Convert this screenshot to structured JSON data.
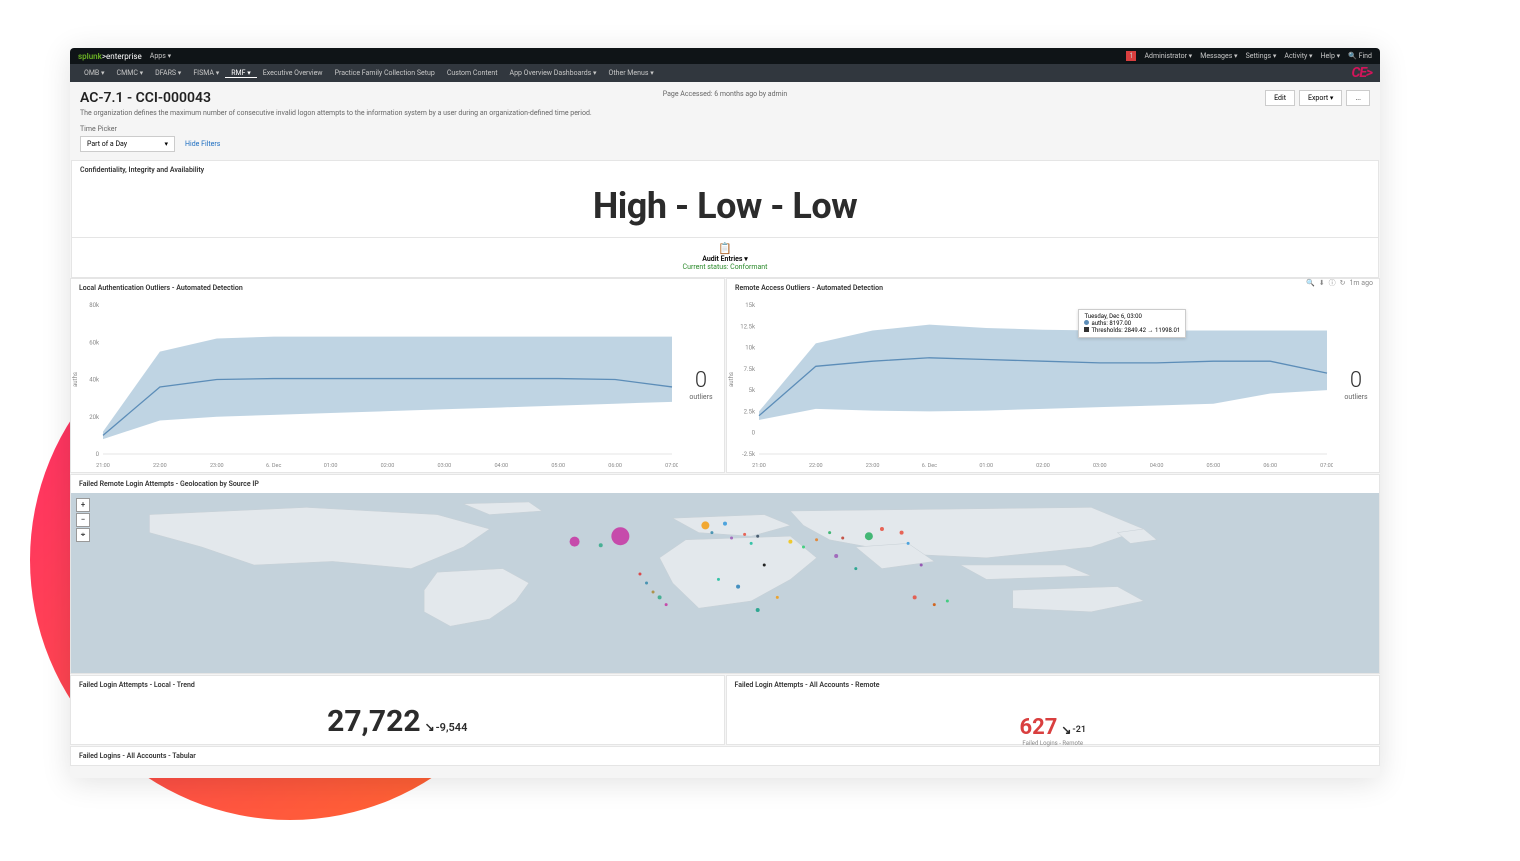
{
  "topbar": {
    "brand_prefix": "splunk",
    "brand_suffix": ">enterprise",
    "apps_label": "Apps ▾",
    "alert_count": "1",
    "right_links": [
      "Administrator ▾",
      "Messages ▾",
      "Settings ▾",
      "Activity ▾",
      "Help ▾"
    ],
    "find_label": "Find"
  },
  "nav": {
    "items": [
      "OMB ▾",
      "CMMC ▾",
      "DFARS ▾",
      "FISMA ▾",
      "RMF ▾",
      "Executive Overview",
      "Practice Family Collection Setup",
      "Custom Content",
      "App Overview Dashboards ▾",
      "Other Menus ▾"
    ],
    "active_index": 4,
    "logo": "CE>"
  },
  "header": {
    "title": "AC-7.1 - CCI-000043",
    "subtitle": "The organization defines the maximum number of consecutive invalid logon attempts to the information system by a user during an organization-defined time period.",
    "page_accessed": "Page Accessed: 6 months ago by admin",
    "actions": {
      "edit": "Edit",
      "export": "Export ▾",
      "more": "..."
    }
  },
  "filters": {
    "section_label": "Time Picker",
    "selected": "Part of a Day",
    "hide_label": "Hide Filters"
  },
  "cia": {
    "title": "Confidentiality, Integrity and Availability",
    "value": "High - Low - Low"
  },
  "audit": {
    "label": "Audit Entries ▾",
    "status": "Current status: Conformant"
  },
  "chart_left": {
    "title": "Local Authentication Outliers - Automated Detection",
    "ylabel": "auths",
    "outliers_value": "0",
    "outliers_label": "outliers",
    "ylim": [
      0,
      80000
    ],
    "ytick_labels": [
      "0",
      "20k",
      "40k",
      "60k",
      "80k"
    ],
    "xtick_labels": [
      "21:00",
      "22:00",
      "23:00",
      "6. Dec",
      "01:00",
      "02:00",
      "03:00",
      "04:00",
      "05:00",
      "06:00",
      "07:00"
    ],
    "line_color": "#5c8db8",
    "area_color": "#a9c5d9",
    "series": {
      "upper": [
        12000,
        55000,
        62000,
        63000,
        63000,
        63000,
        63000,
        63000,
        63000,
        63000,
        63000
      ],
      "line": [
        10000,
        36000,
        40000,
        40500,
        40500,
        40500,
        40500,
        40500,
        40500,
        40000,
        36000
      ],
      "lower": [
        8000,
        18000,
        20000,
        21000,
        22000,
        23000,
        24000,
        25000,
        26000,
        27000,
        28000
      ]
    }
  },
  "chart_right": {
    "title": "Remote Access Outliers - Automated Detection",
    "ylabel": "auths",
    "outliers_value": "0",
    "outliers_label": "outliers",
    "ylim": [
      -2500,
      15000
    ],
    "ytick_labels": [
      "-2.5k",
      "0",
      "2.5k",
      "5k",
      "7.5k",
      "10k",
      "12.5k",
      "15k"
    ],
    "xtick_labels": [
      "21:00",
      "22:00",
      "23:00",
      "6. Dec",
      "01:00",
      "02:00",
      "03:00",
      "04:00",
      "05:00",
      "06:00",
      "07:00"
    ],
    "line_color": "#5c8db8",
    "area_color": "#a9c5d9",
    "series": {
      "upper": [
        2500,
        10500,
        12000,
        12700,
        12300,
        12100,
        12000,
        12000,
        12000,
        12000,
        12000
      ],
      "line": [
        2000,
        7800,
        8400,
        8800,
        8600,
        8400,
        8200,
        8200,
        8400,
        8400,
        7000
      ],
      "lower": [
        1500,
        2800,
        2600,
        2500,
        2600,
        2800,
        3000,
        3200,
        3400,
        4600,
        5000
      ]
    },
    "tooltip": {
      "time_line": "Tuesday, Dec 6, 03:00",
      "auths_line": "auths: 8197.00",
      "thresh_line": "Thresholds: 2849.42 → 11998.01"
    },
    "tools_time": "1m ago"
  },
  "map": {
    "title": "Failed Remote Login Attempts - Geolocation by Source IP",
    "land_color": "#e3e8ec",
    "sea_color": "#c4d2db",
    "markers": [
      {
        "x": 42,
        "y": 24,
        "r": 9,
        "color": "#c734a2"
      },
      {
        "x": 38.5,
        "y": 27,
        "r": 5,
        "color": "#c734a2"
      },
      {
        "x": 40.5,
        "y": 29,
        "r": 2,
        "color": "#3a8"
      },
      {
        "x": 43.5,
        "y": 45,
        "r": 1.5,
        "color": "#d33"
      },
      {
        "x": 44,
        "y": 50,
        "r": 1.5,
        "color": "#38a"
      },
      {
        "x": 44.5,
        "y": 55,
        "r": 1.5,
        "color": "#a83"
      },
      {
        "x": 45,
        "y": 58,
        "r": 2,
        "color": "#3a8"
      },
      {
        "x": 45.5,
        "y": 62,
        "r": 1.5,
        "color": "#c734a2"
      },
      {
        "x": 48.5,
        "y": 18,
        "r": 4,
        "color": "#f39c12"
      },
      {
        "x": 50,
        "y": 17,
        "r": 2,
        "color": "#3498db"
      },
      {
        "x": 49,
        "y": 22,
        "r": 1.5,
        "color": "#38a"
      },
      {
        "x": 50.5,
        "y": 25,
        "r": 1.5,
        "color": "#9b59b6"
      },
      {
        "x": 51.5,
        "y": 23,
        "r": 1.5,
        "color": "#e74c3c"
      },
      {
        "x": 52,
        "y": 28,
        "r": 1.5,
        "color": "#1abc9c"
      },
      {
        "x": 52.5,
        "y": 24,
        "r": 1.5,
        "color": "#34495e"
      },
      {
        "x": 53,
        "y": 40,
        "r": 1.5,
        "color": "#7"
      },
      {
        "x": 55,
        "y": 27,
        "r": 2,
        "color": "#f1c40f"
      },
      {
        "x": 56,
        "y": 30,
        "r": 1.5,
        "color": "#2ecc71"
      },
      {
        "x": 57,
        "y": 26,
        "r": 1.5,
        "color": "#e67e22"
      },
      {
        "x": 58.5,
        "y": 35,
        "r": 2,
        "color": "#9b59b6"
      },
      {
        "x": 58,
        "y": 22,
        "r": 1.5,
        "color": "#27ae60"
      },
      {
        "x": 59,
        "y": 25,
        "r": 1.5,
        "color": "#c0392b"
      },
      {
        "x": 60,
        "y": 42,
        "r": 1.5,
        "color": "#16a085"
      },
      {
        "x": 61,
        "y": 24,
        "r": 4,
        "color": "#27ae60"
      },
      {
        "x": 62,
        "y": 20,
        "r": 2,
        "color": "#e74c3c"
      },
      {
        "x": 64,
        "y": 28,
        "r": 1.5,
        "color": "#3498db"
      },
      {
        "x": 63.5,
        "y": 22,
        "r": 2,
        "color": "#e74c3c"
      },
      {
        "x": 65,
        "y": 40,
        "r": 1.5,
        "color": "#8e44ad"
      },
      {
        "x": 49.5,
        "y": 48,
        "r": 1.5,
        "color": "#1abc9c"
      },
      {
        "x": 51,
        "y": 52,
        "r": 2,
        "color": "#2980b9"
      },
      {
        "x": 52.5,
        "y": 65,
        "r": 2,
        "color": "#16a085"
      },
      {
        "x": 54,
        "y": 58,
        "r": 1.5,
        "color": "#f39c12"
      },
      {
        "x": 64.5,
        "y": 58,
        "r": 2,
        "color": "#e74c3c"
      },
      {
        "x": 66,
        "y": 62,
        "r": 1.5,
        "color": "#d35400"
      },
      {
        "x": 67,
        "y": 60,
        "r": 1.5,
        "color": "#2ecc71"
      }
    ]
  },
  "stat_left": {
    "title": "Failed Login Attempts - Local - Trend",
    "value": "27,722",
    "trend": "-9,544",
    "value_color": "#2b2b2b",
    "trend_color": "#2b2b2b"
  },
  "stat_right": {
    "title": "Failed Login Attempts - All Accounts - Remote",
    "value": "627",
    "trend": "-21",
    "sublabel": "Failed Logins - Remote",
    "value_color": "#d93f3f",
    "trend_color": "#2b2b2b"
  },
  "tabular": {
    "title": "Failed Logins - All Accounts - Tabular"
  }
}
